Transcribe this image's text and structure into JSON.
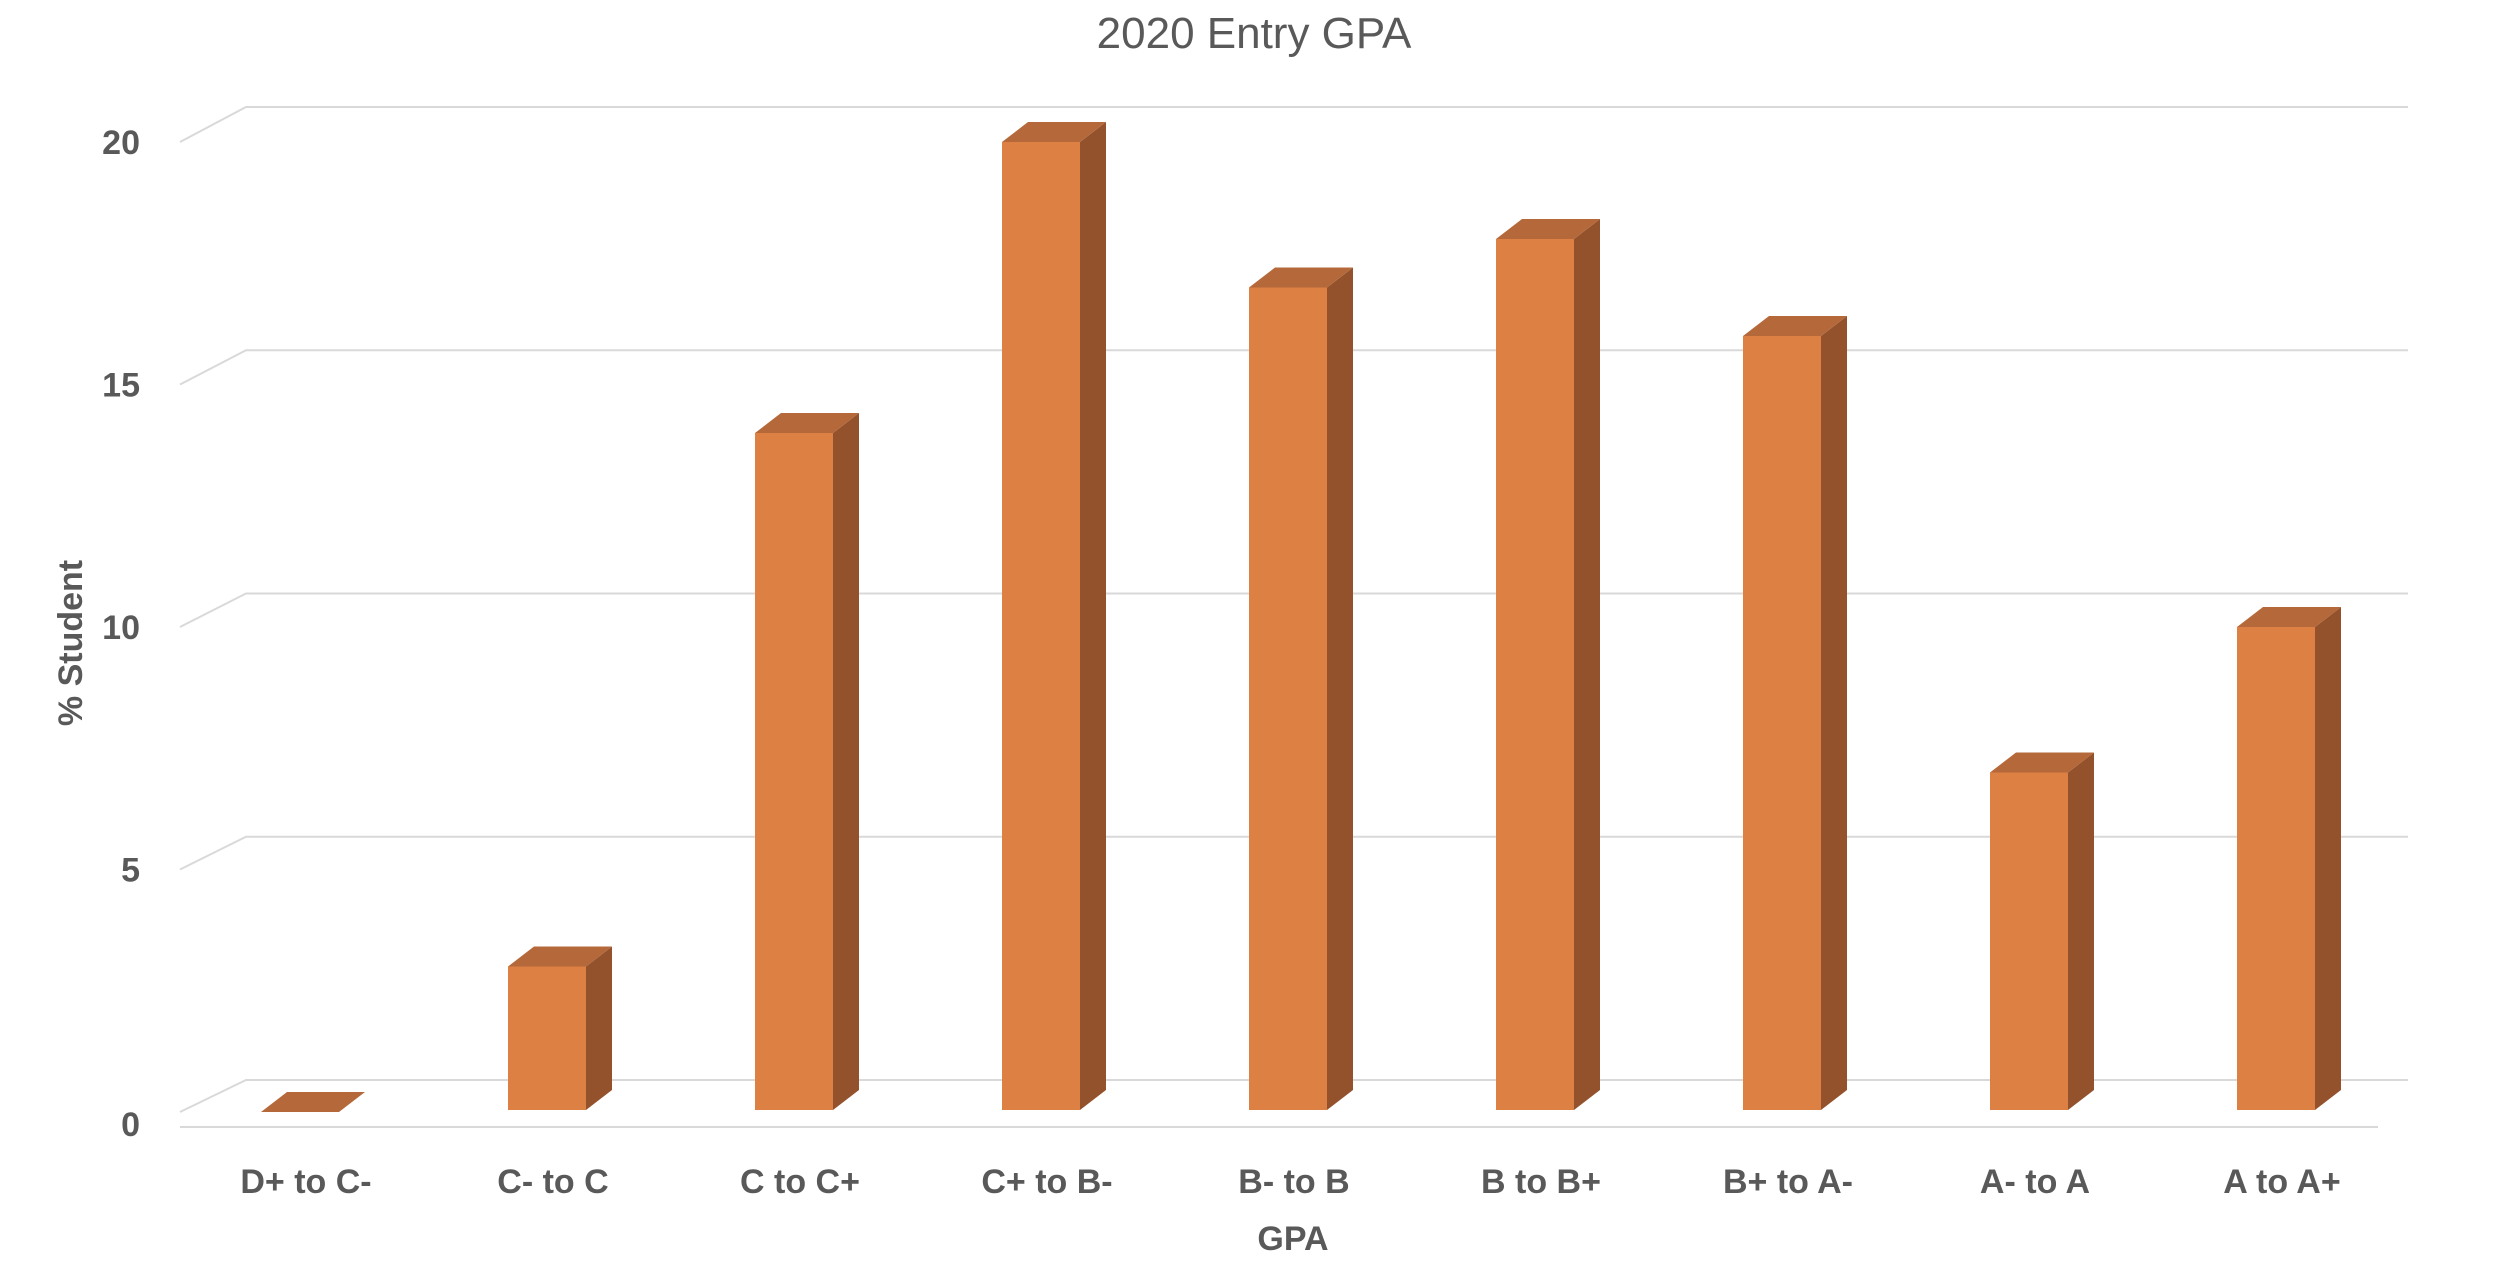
{
  "chart_data": {
    "type": "bar",
    "title": "2020 Entry GPA",
    "xlabel": "GPA",
    "ylabel": "% Student",
    "categories": [
      "D+ to C-",
      "C- to C",
      "C to C+",
      "C+ to B-",
      "B- to B",
      "B to B+",
      "B+ to A-",
      "A- to A",
      "A to A+"
    ],
    "values": [
      0,
      3,
      14,
      20,
      17,
      18,
      16,
      7,
      10
    ],
    "ylim": [
      0,
      20
    ],
    "yticks": [
      0,
      5,
      10,
      15,
      20
    ],
    "grid": true,
    "style": "3d-column",
    "colors": {
      "front": "#DD8044",
      "side": "#93522C",
      "top": "#B5693A"
    }
  }
}
